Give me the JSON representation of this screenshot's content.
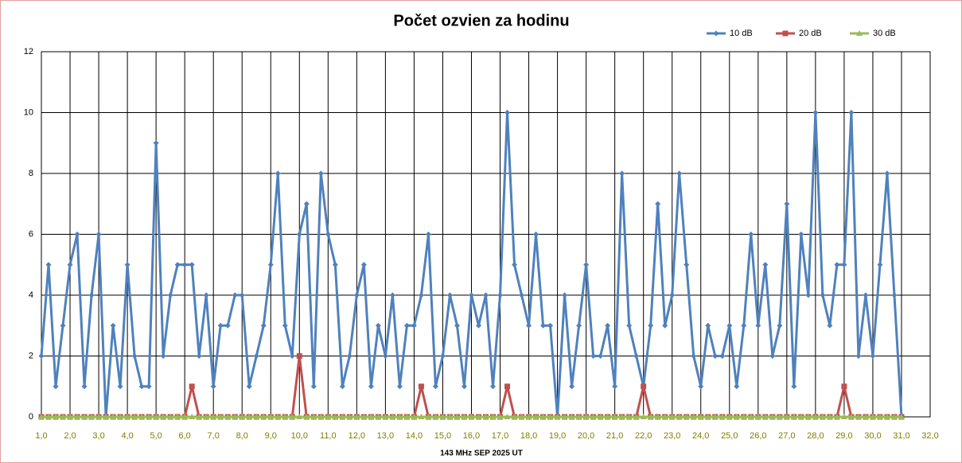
{
  "chart_data": {
    "type": "line",
    "title": "Počet ozvien za hodinu",
    "x_label": "143 MHz SEP  2025  UT",
    "x": [
      1,
      1.25,
      1.5,
      1.75,
      2,
      2.25,
      2.5,
      2.75,
      3,
      3.25,
      3.5,
      3.75,
      4,
      4.25,
      4.5,
      4.75,
      5,
      5.25,
      5.5,
      5.75,
      6,
      6.25,
      6.5,
      6.75,
      7,
      7.25,
      7.5,
      7.75,
      8,
      8.25,
      8.5,
      8.75,
      9,
      9.25,
      9.5,
      9.75,
      10,
      10.25,
      10.5,
      10.75,
      11,
      11.25,
      11.5,
      11.75,
      12,
      12.25,
      12.5,
      12.75,
      13,
      13.25,
      13.5,
      13.75,
      14,
      14.25,
      14.5,
      14.75,
      15,
      15.25,
      15.5,
      15.75,
      16,
      16.25,
      16.5,
      16.75,
      17,
      17.25,
      17.5,
      17.75,
      18,
      18.25,
      18.5,
      18.75,
      19,
      19.25,
      19.5,
      19.75,
      20,
      20.25,
      20.5,
      20.75,
      21,
      21.25,
      21.5,
      21.75,
      22,
      22.25,
      22.5,
      22.75,
      23,
      23.25,
      23.5,
      23.75,
      24,
      24.25,
      24.5,
      24.75,
      25,
      25.25,
      25.5,
      25.75,
      26,
      26.25,
      26.5,
      26.75,
      27,
      27.25,
      27.5,
      27.75,
      28,
      28.25,
      28.5,
      28.75,
      29,
      29.25,
      29.5,
      29.75,
      30,
      30.25,
      30.5,
      30.75,
      31
    ],
    "series": [
      {
        "name": "10 dB",
        "color": "#4f81bd",
        "marker": "diamond",
        "values": [
          2,
          5,
          1,
          3,
          5,
          6,
          1,
          4,
          6,
          0,
          3,
          1,
          5,
          2,
          1,
          1,
          9,
          2,
          4,
          5,
          5,
          5,
          2,
          4,
          1,
          3,
          3,
          4,
          4,
          1,
          2,
          3,
          5,
          8,
          3,
          2,
          6,
          7,
          1,
          8,
          6,
          5,
          1,
          2,
          4,
          5,
          1,
          3,
          2,
          4,
          1,
          3,
          3,
          4,
          6,
          1,
          2,
          4,
          3,
          1,
          4,
          3,
          4,
          1,
          4,
          10,
          5,
          4,
          3,
          6,
          3,
          3,
          0,
          4,
          1,
          3,
          5,
          2,
          2,
          3,
          1,
          8,
          3,
          2,
          1,
          3,
          7,
          3,
          4,
          8,
          5,
          2,
          1,
          3,
          2,
          2,
          3,
          1,
          3,
          6,
          3,
          5,
          2,
          3,
          7,
          1,
          6,
          4,
          10,
          4,
          3,
          5,
          5,
          10,
          2,
          4,
          2,
          5,
          8,
          4,
          0
        ]
      },
      {
        "name": "20 dB",
        "color": "#c0504d",
        "marker": "square",
        "values": [
          0,
          0,
          0,
          0,
          0,
          0,
          0,
          0,
          0,
          0,
          0,
          0,
          0,
          0,
          0,
          0,
          0,
          0,
          0,
          0,
          0,
          1,
          0,
          0,
          0,
          0,
          0,
          0,
          0,
          0,
          0,
          0,
          0,
          0,
          0,
          0,
          2,
          0,
          0,
          0,
          0,
          0,
          0,
          0,
          0,
          0,
          0,
          0,
          0,
          0,
          0,
          0,
          0,
          1,
          0,
          0,
          0,
          0,
          0,
          0,
          0,
          0,
          0,
          0,
          0,
          1,
          0,
          0,
          0,
          0,
          0,
          0,
          0,
          0,
          0,
          0,
          0,
          0,
          0,
          0,
          0,
          0,
          0,
          0,
          1,
          0,
          0,
          0,
          0,
          0,
          0,
          0,
          0,
          0,
          0,
          0,
          0,
          0,
          0,
          0,
          0,
          0,
          0,
          0,
          0,
          0,
          0,
          0,
          0,
          0,
          0,
          0,
          1,
          0,
          0,
          0,
          0,
          0,
          0,
          0,
          0
        ]
      },
      {
        "name": "30 dB",
        "color": "#9bbb59",
        "marker": "triangle",
        "values": [
          0,
          0,
          0,
          0,
          0,
          0,
          0,
          0,
          0,
          0,
          0,
          0,
          0,
          0,
          0,
          0,
          0,
          0,
          0,
          0,
          0,
          0,
          0,
          0,
          0,
          0,
          0,
          0,
          0,
          0,
          0,
          0,
          0,
          0,
          0,
          0,
          0,
          0,
          0,
          0,
          0,
          0,
          0,
          0,
          0,
          0,
          0,
          0,
          0,
          0,
          0,
          0,
          0,
          0,
          0,
          0,
          0,
          0,
          0,
          0,
          0,
          0,
          0,
          0,
          0,
          0,
          0,
          0,
          0,
          0,
          0,
          0,
          0,
          0,
          0,
          0,
          0,
          0,
          0,
          0,
          0,
          0,
          0,
          0,
          0,
          0,
          0,
          0,
          0,
          0,
          0,
          0,
          0,
          0,
          0,
          0,
          0,
          0,
          0,
          0,
          0,
          0,
          0,
          0,
          0,
          0,
          0,
          0,
          0,
          0,
          0,
          0,
          0,
          0,
          0,
          0,
          0,
          0,
          0,
          0,
          0
        ]
      }
    ],
    "xlim": [
      1,
      32
    ],
    "xticks": [
      {
        "value": 1,
        "label": "1,0"
      },
      {
        "value": 2,
        "label": "2,0"
      },
      {
        "value": 3,
        "label": "3,0"
      },
      {
        "value": 4,
        "label": "4,0"
      },
      {
        "value": 5,
        "label": "5,0"
      },
      {
        "value": 6,
        "label": "6,0"
      },
      {
        "value": 7,
        "label": "7,0"
      },
      {
        "value": 8,
        "label": "8,0"
      },
      {
        "value": 9,
        "label": "9,0"
      },
      {
        "value": 10,
        "label": "10,0"
      },
      {
        "value": 11,
        "label": "11,0"
      },
      {
        "value": 12,
        "label": "12,0"
      },
      {
        "value": 13,
        "label": "13,0"
      },
      {
        "value": 14,
        "label": "14,0"
      },
      {
        "value": 15,
        "label": "15,0"
      },
      {
        "value": 16,
        "label": "16,0"
      },
      {
        "value": 17,
        "label": "17,0"
      },
      {
        "value": 18,
        "label": "18,0"
      },
      {
        "value": 19,
        "label": "19,0"
      },
      {
        "value": 20,
        "label": "20,0"
      },
      {
        "value": 21,
        "label": "21,0"
      },
      {
        "value": 22,
        "label": "22,0"
      },
      {
        "value": 23,
        "label": "23,0"
      },
      {
        "value": 24,
        "label": "24,0"
      },
      {
        "value": 25,
        "label": "25,0"
      },
      {
        "value": 26,
        "label": "26,0"
      },
      {
        "value": 27,
        "label": "27,0"
      },
      {
        "value": 28,
        "label": "28,0"
      },
      {
        "value": 29,
        "label": "29,0"
      },
      {
        "value": 30,
        "label": "30,0"
      },
      {
        "value": 31,
        "label": "31,0"
      },
      {
        "value": 32,
        "label": "32,0"
      }
    ],
    "ylim": [
      0,
      12
    ],
    "yticks": [
      0,
      2,
      4,
      6,
      8,
      10,
      12
    ],
    "grid": true,
    "legend": "top-right"
  }
}
